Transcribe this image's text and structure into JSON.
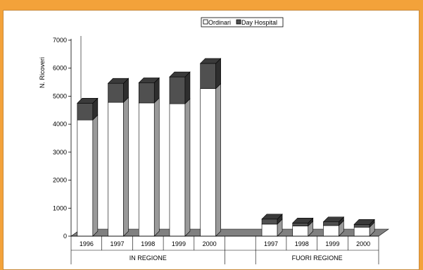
{
  "chart_data": {
    "type": "bar",
    "stacked": true,
    "three_d": true,
    "ylabel": "N. Ricoveri",
    "xlabel": "",
    "title": "",
    "ylim": [
      0,
      7000
    ],
    "yticks": [
      0,
      1000,
      2000,
      3000,
      4000,
      5000,
      6000,
      7000
    ],
    "legend_position": "top",
    "groups": [
      {
        "label": "IN REGIONE",
        "categories": [
          "1996",
          "1997",
          "1998",
          "1999",
          "2000"
        ]
      },
      {
        "label": "FUORI REGIONE",
        "categories": [
          "1997",
          "1998",
          "1999",
          "2000"
        ]
      }
    ],
    "series": [
      {
        "name": "Ordinari",
        "color": "#ffffff",
        "values": [
          4150,
          4780,
          4760,
          4730,
          5270,
          null,
          430,
          360,
          380,
          320
        ]
      },
      {
        "name": "Day Hospital",
        "color": "#505050",
        "values": [
          600,
          680,
          720,
          960,
          900,
          null,
          180,
          110,
          130,
          100
        ]
      }
    ],
    "categories": [
      "1996",
      "1997",
      "1998",
      "1999",
      "2000",
      "",
      "1997",
      "1998",
      "1999",
      "2000"
    ]
  }
}
